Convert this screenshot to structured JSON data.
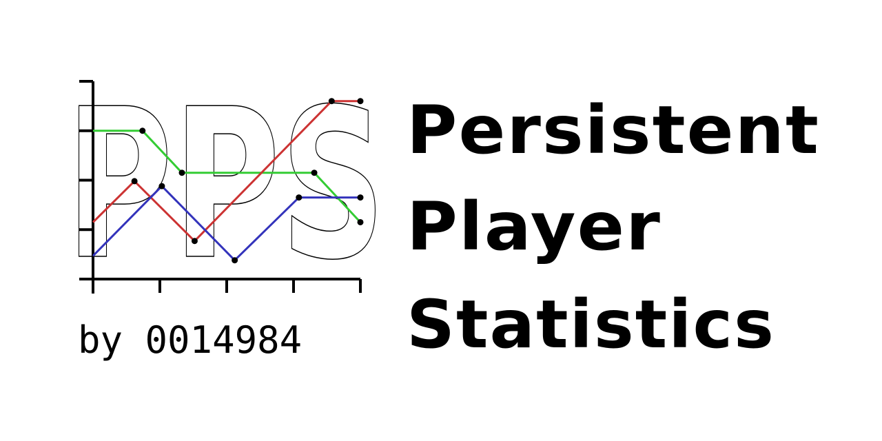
{
  "logo": {
    "monogram": "PPS",
    "author": "by 0014984",
    "title_lines": [
      "Persistent",
      "Player",
      "Statistics"
    ]
  },
  "chart_data": {
    "type": "line",
    "title": "",
    "xlabel": "",
    "ylabel": "",
    "xlim": [
      0,
      4
    ],
    "ylim": [
      0,
      4
    ],
    "x_ticks": [
      0,
      1,
      2,
      3,
      4
    ],
    "y_ticks": [
      0,
      1,
      2,
      3,
      4
    ],
    "grid": false,
    "legend": "none",
    "series": [
      {
        "color": "#33cc33",
        "x": [
          0,
          0.74,
          1.33,
          3.31,
          4
        ],
        "y": [
          3,
          3,
          2.15,
          2.15,
          1.15
        ]
      },
      {
        "color": "#cc3333",
        "x": [
          0,
          0.62,
          1.52,
          3.57,
          4
        ],
        "y": [
          1.15,
          1.98,
          0.77,
          3.6,
          3.6
        ]
      },
      {
        "color": "#3333bb",
        "x": [
          0,
          1.03,
          2.12,
          3.08,
          4
        ],
        "y": [
          0.47,
          1.88,
          0.38,
          1.65,
          1.65
        ]
      }
    ]
  }
}
